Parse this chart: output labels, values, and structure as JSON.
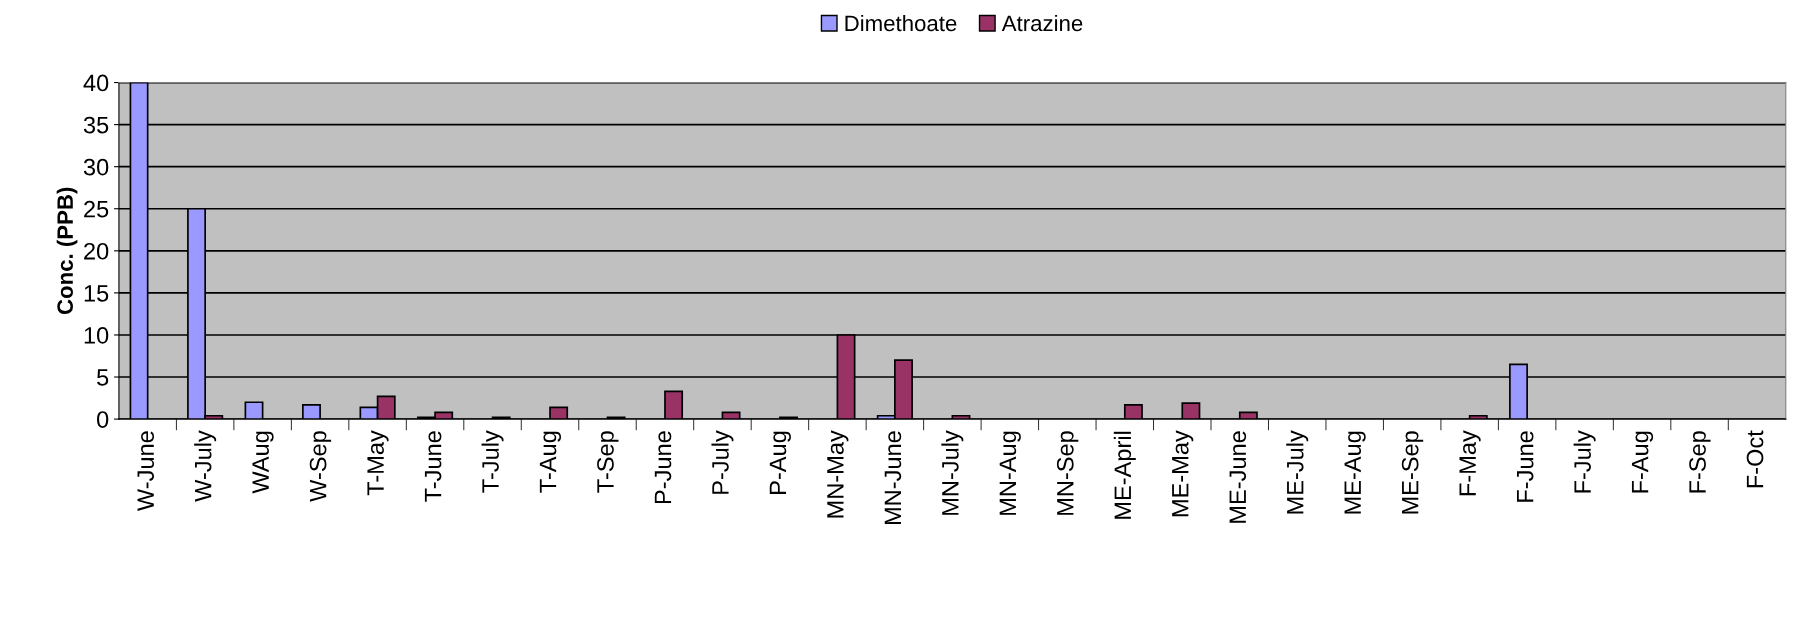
{
  "chart_data": {
    "type": "bar",
    "ylabel": "Conc. (PPB)",
    "categories": [
      "W-June",
      "W-July",
      "WAug",
      "W-Sep",
      "T-May",
      "T-June",
      "T-July",
      "T-Aug",
      "T-Sep",
      "P-June",
      "P-July",
      "P-Aug",
      "MN-May",
      "MN-June",
      "MN-July",
      "MN-Aug",
      "MN-Sep",
      "ME-April",
      "ME-May",
      "ME-June",
      "ME-July",
      "ME-Aug",
      "ME-Sep",
      "F-May",
      "F-June",
      "F-July",
      "F-Aug",
      "F-Sep",
      "F-Oct"
    ],
    "series": [
      {
        "name": "Dimethoate",
        "color": "#9999ff",
        "values": [
          40,
          25,
          2.0,
          1.7,
          1.4,
          0.2,
          null,
          null,
          null,
          null,
          null,
          null,
          null,
          0.4,
          null,
          null,
          null,
          null,
          null,
          null,
          null,
          null,
          null,
          null,
          6.5,
          null,
          null,
          null,
          null
        ]
      },
      {
        "name": "Atrazine",
        "color": "#993366",
        "values": [
          null,
          0.4,
          null,
          null,
          2.7,
          0.8,
          0.2,
          1.4,
          0.2,
          3.3,
          0.8,
          0.2,
          10,
          7.0,
          0.4,
          null,
          null,
          1.7,
          1.9,
          0.8,
          null,
          null,
          null,
          0.4,
          null,
          null,
          null,
          null,
          null
        ]
      }
    ],
    "ylim": [
      0,
      40
    ],
    "yticks": [
      0,
      5,
      10,
      15,
      20,
      25,
      30,
      35,
      40
    ],
    "grid": "y",
    "legend": "top"
  }
}
